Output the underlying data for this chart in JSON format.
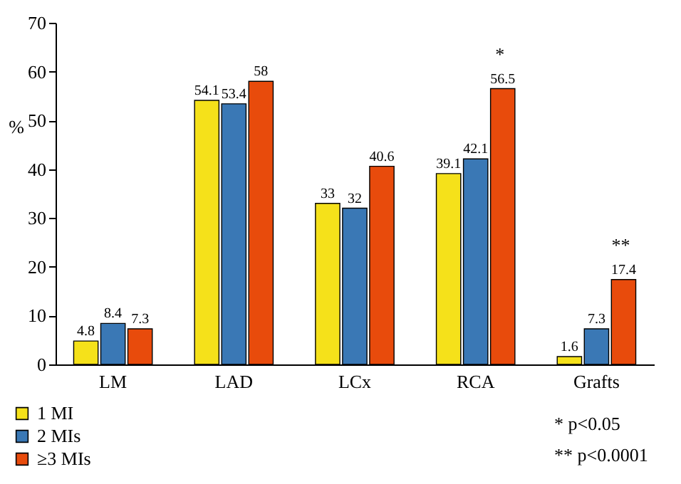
{
  "chart_data": {
    "type": "bar",
    "ylabel": "%",
    "categories": [
      "LM",
      "LAD",
      "LCx",
      "RCA",
      "Grafts"
    ],
    "series": [
      {
        "name": "1 MI",
        "color": "#f5e11a",
        "values": [
          4.8,
          54.1,
          33,
          39.1,
          1.6
        ]
      },
      {
        "name": "2 MIs",
        "color": "#3a78b5",
        "values": [
          8.4,
          53.4,
          32,
          42.1,
          7.3
        ]
      },
      {
        "name": "≥3 MIs",
        "color": "#e84b0c",
        "values": [
          7.3,
          58,
          40.6,
          56.5,
          17.4
        ]
      }
    ],
    "ylim": [
      0,
      70
    ],
    "yticks": [
      0,
      10,
      20,
      30,
      40,
      50,
      60,
      70
    ],
    "grid": false,
    "legend": "bottom",
    "data_labels": true,
    "annotations": [
      "*",
      "**",
      "* p<0.05",
      "** p<0.0001"
    ]
  }
}
